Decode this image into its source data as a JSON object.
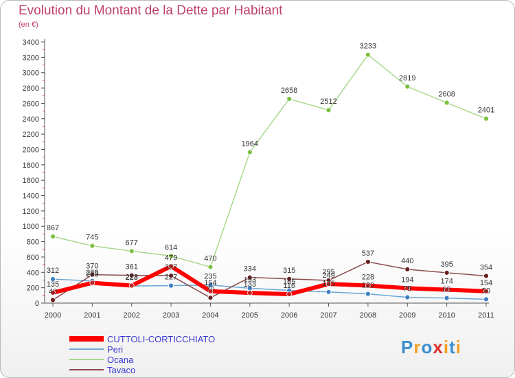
{
  "title": "Evolution du Montant de la Dette par Habitant",
  "subtitle": "(en €)",
  "logo": {
    "text": "Proxiti",
    "colors": [
      "#3d8fd0",
      "#f0a020",
      "#3d8fd0",
      "#e03030",
      "#f0a020",
      "#3d8fd0",
      "#f0a020"
    ]
  },
  "chart_data": {
    "type": "line",
    "x": [
      "2000",
      "2001",
      "2002",
      "2003",
      "2004",
      "2005",
      "2006",
      "2007",
      "2008",
      "2009",
      "2010",
      "2011"
    ],
    "ylim": [
      0,
      3400
    ],
    "yticks": [
      "0",
      "200",
      "400",
      "600",
      "800",
      "1000",
      "1200",
      "1400",
      "1600",
      "1800",
      "2000",
      "2200",
      "2400",
      "2600",
      "2800",
      "3000",
      "3200",
      "3400"
    ],
    "grid": false,
    "legend_position": "bottom-left",
    "series": [
      {
        "name": "CUTTOLI-CORTICCHIATO",
        "color": "#ff0000",
        "marker": "#cc2020",
        "width": 6,
        "values": [
          135,
          263,
          228,
          479,
          154,
          133,
          116,
          249,
          228,
          194,
          174,
          154
        ],
        "labels": [
          "135",
          "263",
          "228",
          "479",
          "154",
          "133",
          "116",
          "249",
          "228",
          "194",
          "174",
          "154"
        ]
      },
      {
        "name": "Peri",
        "color": "#6aa6d6",
        "marker": "#3d7fc0",
        "width": 1.5,
        "values": [
          312,
          288,
          223,
          227,
          235,
          193,
          165,
          145,
          120,
          75,
          65,
          50
        ],
        "labels": [
          "312",
          "288",
          "223",
          "227",
          "235",
          "193",
          "165",
          "145",
          "120",
          "75",
          "65",
          "50"
        ]
      },
      {
        "name": "Ocana",
        "color": "#a9d88c",
        "marker": "#7cc040",
        "width": 1.5,
        "values": [
          867,
          745,
          677,
          614,
          470,
          1964,
          2658,
          2512,
          3233,
          2819,
          2608,
          2401
        ],
        "labels": [
          "867",
          "745",
          "677",
          "614",
          "470",
          "1964",
          "2658",
          "2512",
          "3233",
          "2819",
          "2608",
          "2401"
        ]
      },
      {
        "name": "Tavaco",
        "color": "#8a4a4a",
        "marker": "#6a2020",
        "width": 1.5,
        "values": [
          40,
          370,
          361,
          357,
          70,
          334,
          315,
          295,
          537,
          440,
          395,
          354
        ],
        "labels": [
          "40",
          "370",
          "361",
          "357",
          "70",
          "334",
          "315",
          "295",
          "537",
          "440",
          "395",
          "354"
        ]
      }
    ]
  }
}
